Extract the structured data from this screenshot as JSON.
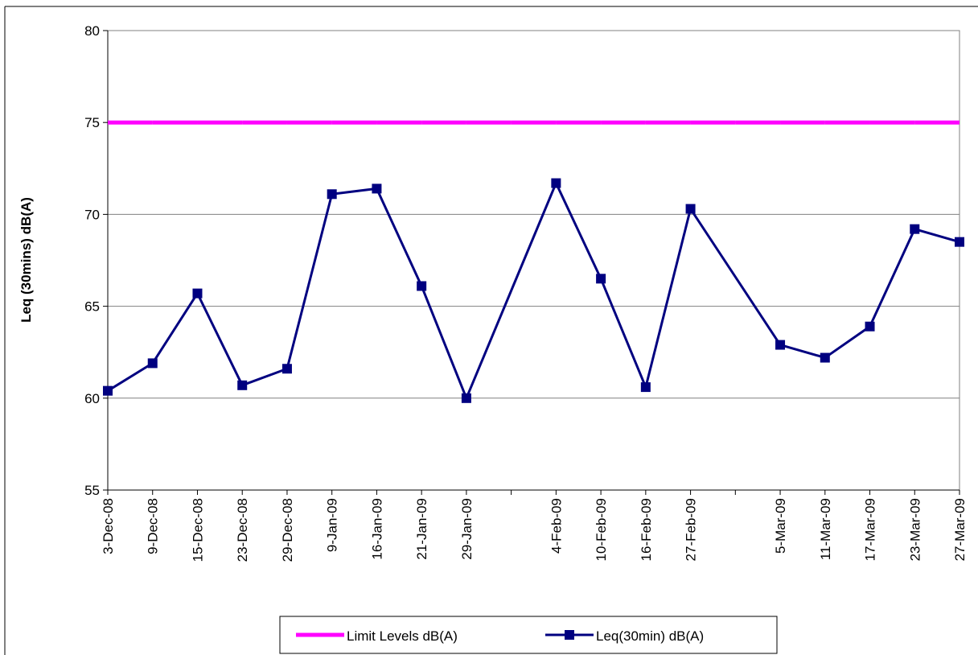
{
  "chart_data": {
    "type": "line",
    "y_label": "Leq (30mins) dB(A)",
    "categories": [
      "3-Dec-08",
      "9-Dec-08",
      "15-Dec-08",
      "23-Dec-08",
      "29-Dec-08",
      "9-Jan-09",
      "16-Jan-09",
      "21-Jan-09",
      "29-Jan-09",
      null,
      "4-Feb-09",
      "10-Feb-09",
      "16-Feb-09",
      "27-Feb-09",
      null,
      "5-Mar-09",
      "11-Mar-09",
      "17-Mar-09",
      "23-Mar-09",
      "27-Mar-09"
    ],
    "series": [
      {
        "name": "Limit Levels dB(A)",
        "color": "#ff00ff",
        "values": [
          75,
          75,
          75,
          75,
          75,
          75,
          75,
          75,
          75,
          75,
          75,
          75,
          75,
          75,
          75,
          75,
          75,
          75,
          75,
          75
        ]
      },
      {
        "name": "Leq(30min) dB(A)",
        "color": "#000080",
        "marker": "square",
        "values": [
          60.4,
          61.9,
          65.7,
          60.7,
          61.6,
          71.1,
          71.4,
          66.1,
          60.0,
          null,
          71.7,
          66.5,
          60.6,
          70.3,
          null,
          62.9,
          62.2,
          63.9,
          69.2,
          68.5
        ]
      }
    ],
    "ylim": [
      55,
      80
    ],
    "yticks": [
      55,
      60,
      65,
      70,
      75,
      80
    ],
    "grid": true,
    "legend": "bottom"
  }
}
